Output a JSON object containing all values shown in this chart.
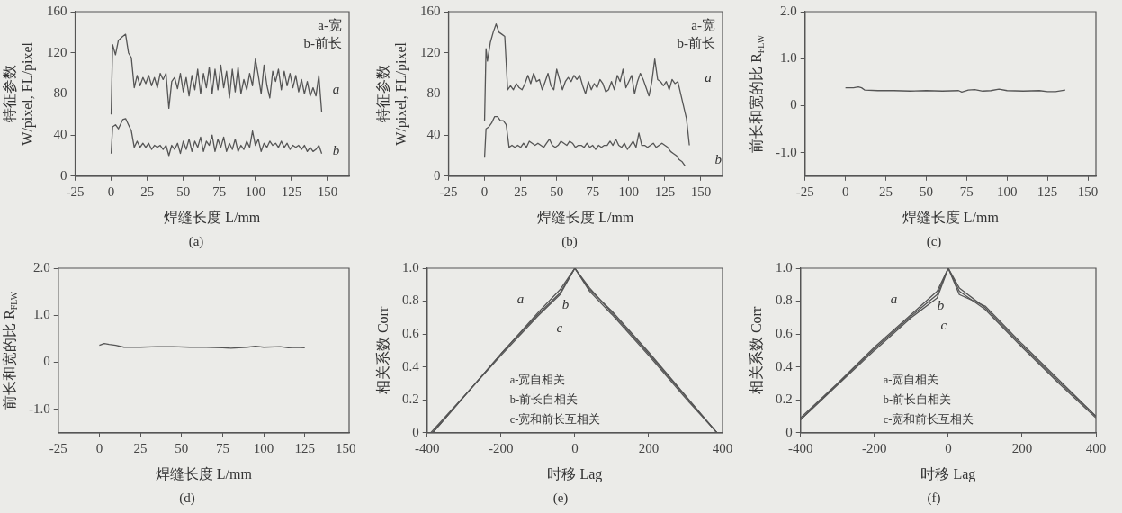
{
  "chart_data": [
    {
      "type": "line",
      "title": "(a)",
      "xlabel": "焊缝长度 L/mm",
      "ylabel": "特征参数\nW/pixel, FL/pixel",
      "xlim": [
        -25,
        165
      ],
      "xticks": [
        -25,
        0,
        25,
        50,
        75,
        100,
        125,
        150
      ],
      "ylim": [
        0,
        160
      ],
      "yticks": [
        0,
        40,
        80,
        120,
        160
      ],
      "series": [
        {
          "name": "a",
          "color": "#555555",
          "x": [
            0,
            1,
            3,
            5,
            8,
            10,
            12,
            14,
            16,
            18,
            20,
            22,
            24,
            26,
            28,
            30,
            32,
            34,
            36,
            38,
            40,
            42,
            44,
            46,
            48,
            50,
            52,
            54,
            56,
            58,
            60,
            62,
            64,
            66,
            68,
            70,
            72,
            74,
            76,
            78,
            80,
            82,
            84,
            86,
            88,
            90,
            92,
            94,
            96,
            98,
            100,
            102,
            104,
            106,
            108,
            110,
            112,
            114,
            116,
            118,
            120,
            122,
            124,
            126,
            128,
            130,
            132,
            134,
            136,
            138,
            140,
            142,
            144,
            146
          ],
          "values": [
            60,
            128,
            118,
            132,
            136,
            138,
            120,
            115,
            86,
            98,
            88,
            96,
            90,
            98,
            88,
            96,
            86,
            100,
            94,
            100,
            66,
            92,
            96,
            85,
            100,
            82,
            96,
            78,
            98,
            84,
            104,
            80,
            100,
            86,
            106,
            80,
            104,
            84,
            108,
            86,
            102,
            76,
            104,
            82,
            106,
            80,
            94,
            84,
            100,
            88,
            114,
            98,
            80,
            108,
            88,
            76,
            102,
            92,
            104,
            84,
            102,
            88,
            100,
            86,
            98,
            82,
            94,
            80,
            92,
            78,
            86,
            78,
            98,
            62
          ]
        },
        {
          "name": "b",
          "color": "#555555",
          "x": [
            0,
            1,
            3,
            5,
            8,
            10,
            12,
            14,
            16,
            18,
            20,
            22,
            24,
            26,
            28,
            30,
            32,
            34,
            36,
            38,
            40,
            42,
            44,
            46,
            48,
            50,
            52,
            54,
            56,
            58,
            60,
            62,
            64,
            66,
            68,
            70,
            72,
            74,
            76,
            78,
            80,
            82,
            84,
            86,
            88,
            90,
            92,
            94,
            96,
            98,
            100,
            102,
            104,
            106,
            108,
            110,
            112,
            114,
            116,
            118,
            120,
            122,
            124,
            126,
            128,
            130,
            132,
            134,
            136,
            138,
            140,
            142,
            144,
            146
          ],
          "values": [
            22,
            48,
            50,
            46,
            55,
            56,
            50,
            44,
            28,
            34,
            28,
            32,
            28,
            32,
            26,
            30,
            28,
            30,
            26,
            30,
            20,
            30,
            26,
            32,
            22,
            34,
            26,
            36,
            24,
            34,
            28,
            38,
            24,
            34,
            30,
            40,
            24,
            36,
            28,
            38,
            24,
            32,
            26,
            36,
            24,
            30,
            26,
            34,
            28,
            44,
            30,
            36,
            24,
            32,
            28,
            34,
            30,
            32,
            28,
            34,
            28,
            32,
            26,
            30,
            28,
            30,
            26,
            30,
            24,
            28,
            24,
            26,
            30,
            22
          ]
        }
      ],
      "annotations": [
        "a-宽",
        "b-前长"
      ]
    },
    {
      "type": "line",
      "title": "(b)",
      "xlabel": "焊缝长度 L/mm",
      "ylabel": "特征参数\nW/pixel, FL/pixel",
      "xlim": [
        -25,
        165
      ],
      "xticks": [
        -25,
        0,
        25,
        50,
        75,
        100,
        125,
        150
      ],
      "ylim": [
        0,
        160
      ],
      "yticks": [
        0,
        40,
        80,
        120,
        160
      ],
      "series": [
        {
          "name": "a",
          "color": "#555555",
          "x": [
            0,
            1,
            2,
            4,
            6,
            8,
            10,
            12,
            14,
            16,
            18,
            20,
            22,
            24,
            26,
            28,
            30,
            32,
            34,
            36,
            38,
            40,
            42,
            44,
            46,
            48,
            50,
            52,
            54,
            56,
            58,
            60,
            62,
            64,
            66,
            68,
            70,
            72,
            74,
            76,
            78,
            80,
            82,
            84,
            86,
            88,
            90,
            92,
            94,
            96,
            98,
            100,
            102,
            104,
            106,
            108,
            110,
            112,
            114,
            116,
            118,
            120,
            122,
            124,
            126,
            128,
            130,
            132,
            134,
            136,
            138,
            140,
            142
          ],
          "values": [
            54,
            124,
            112,
            130,
            140,
            148,
            140,
            138,
            136,
            84,
            88,
            84,
            90,
            86,
            84,
            90,
            98,
            90,
            100,
            92,
            94,
            84,
            92,
            100,
            88,
            84,
            104,
            94,
            84,
            92,
            96,
            92,
            98,
            94,
            98,
            88,
            80,
            92,
            84,
            90,
            86,
            94,
            90,
            82,
            84,
            92,
            84,
            98,
            92,
            104,
            86,
            92,
            98,
            80,
            92,
            100,
            94,
            86,
            78,
            92,
            114,
            94,
            92,
            88,
            92,
            84,
            94,
            90,
            92,
            80,
            68,
            56,
            30
          ]
        },
        {
          "name": "b",
          "color": "#555555",
          "x": [
            0,
            1,
            3,
            5,
            7,
            9,
            11,
            13,
            15,
            17,
            19,
            21,
            23,
            25,
            27,
            29,
            31,
            33,
            35,
            37,
            39,
            41,
            43,
            45,
            47,
            49,
            51,
            53,
            55,
            57,
            59,
            61,
            63,
            65,
            67,
            69,
            71,
            73,
            75,
            77,
            79,
            81,
            83,
            85,
            87,
            89,
            91,
            93,
            95,
            97,
            99,
            101,
            103,
            105,
            107,
            109,
            111,
            113,
            115,
            117,
            119,
            121,
            123,
            125,
            127,
            129,
            131,
            133,
            135,
            137,
            139
          ],
          "values": [
            18,
            46,
            48,
            52,
            58,
            58,
            54,
            54,
            50,
            28,
            30,
            28,
            30,
            28,
            32,
            28,
            34,
            32,
            30,
            32,
            30,
            28,
            32,
            36,
            30,
            28,
            30,
            34,
            32,
            30,
            34,
            32,
            28,
            30,
            30,
            28,
            32,
            28,
            30,
            26,
            30,
            28,
            30,
            30,
            34,
            30,
            36,
            30,
            28,
            32,
            26,
            30,
            34,
            28,
            42,
            30,
            30,
            28,
            30,
            32,
            28,
            30,
            32,
            30,
            28,
            24,
            22,
            20,
            16,
            14,
            10
          ]
        }
      ],
      "annotations": [
        "a-宽",
        "b-前长"
      ]
    },
    {
      "type": "line",
      "title": "(c)",
      "xlabel": "焊缝长度 L/mm",
      "ylabel": "前长和宽的比 R$_{FLW}$",
      "xlim": [
        -25,
        155
      ],
      "xticks": [
        -25,
        0,
        25,
        50,
        75,
        100,
        125,
        150
      ],
      "ylim": [
        -1.5,
        2.0
      ],
      "yticks": [
        {
          "value": -1,
          "label": "-1.0"
        },
        0,
        {
          "value": 1,
          "label": "1.0"
        },
        {
          "value": 2,
          "label": "2.0"
        }
      ],
      "series": [
        {
          "color": "#555555",
          "x": [
            0,
            5,
            8,
            10,
            12,
            20,
            30,
            40,
            50,
            60,
            70,
            72,
            76,
            80,
            85,
            90,
            95,
            100,
            110,
            120,
            125,
            130,
            136
          ],
          "values": [
            0.38,
            0.38,
            0.4,
            0.38,
            0.33,
            0.32,
            0.32,
            0.31,
            0.32,
            0.31,
            0.32,
            0.29,
            0.33,
            0.34,
            0.31,
            0.32,
            0.35,
            0.32,
            0.31,
            0.32,
            0.3,
            0.3,
            0.33
          ]
        }
      ]
    },
    {
      "type": "line",
      "title": "(d)",
      "xlabel": "焊缝长度 L/mm",
      "ylabel": "前长和宽的比 R$_{FLW}$",
      "xlim": [
        -25,
        152
      ],
      "xticks": [
        -25,
        0,
        25,
        50,
        75,
        100,
        125,
        150
      ],
      "ylim": [
        -1.5,
        2.0
      ],
      "yticks": [
        {
          "value": -1,
          "label": "-1.0"
        },
        0,
        {
          "value": 1,
          "label": "1.0"
        },
        {
          "value": 2,
          "label": "2.0"
        }
      ],
      "series": [
        {
          "color": "#555555",
          "x": [
            0,
            3,
            6,
            10,
            15,
            25,
            35,
            45,
            55,
            65,
            75,
            80,
            90,
            95,
            100,
            110,
            115,
            120,
            125
          ],
          "values": [
            0.36,
            0.4,
            0.38,
            0.36,
            0.32,
            0.32,
            0.33,
            0.33,
            0.32,
            0.32,
            0.31,
            0.3,
            0.32,
            0.34,
            0.32,
            0.33,
            0.31,
            0.32,
            0.31
          ]
        }
      ]
    },
    {
      "type": "line",
      "title": "(e)",
      "xlabel": "时移 Lag",
      "ylabel": "相关系数 Corr",
      "xlim": [
        -400,
        400
      ],
      "xticks": [
        -400,
        -200,
        0,
        200,
        400
      ],
      "ylim": [
        0,
        1.0
      ],
      "yticks": [
        0,
        0.2,
        0.4,
        0.6,
        0.8,
        {
          "value": 1,
          "label": "1.0"
        }
      ],
      "series": [
        {
          "name": "a",
          "color": "#555555",
          "x": [
            -385,
            -300,
            -200,
            -100,
            -40,
            0,
            40,
            100,
            200,
            300,
            385
          ],
          "values": [
            0,
            0.22,
            0.48,
            0.73,
            0.87,
            1,
            0.88,
            0.73,
            0.48,
            0.22,
            0
          ]
        },
        {
          "name": "b",
          "color": "#555555",
          "x": [
            -385,
            -200,
            -100,
            -40,
            0,
            40,
            100,
            200,
            300,
            385
          ],
          "values": [
            0,
            0.48,
            0.72,
            0.85,
            1,
            0.86,
            0.72,
            0.47,
            0.21,
            0
          ]
        },
        {
          "name": "c",
          "color": "#555555",
          "x": [
            -390,
            -200,
            -100,
            -40,
            0,
            40,
            100,
            200,
            385
          ],
          "values": [
            0,
            0.47,
            0.71,
            0.84,
            1,
            0.87,
            0.74,
            0.49,
            0
          ]
        }
      ],
      "annotations": [
        "a-宽自相关",
        "b-前长自相关",
        "c-宽和前长互相关"
      ]
    },
    {
      "type": "line",
      "title": "(f)",
      "xlabel": "时移 Lag",
      "ylabel": "相关系数 Corr",
      "xlim": [
        -400,
        400
      ],
      "xticks": [
        -400,
        -200,
        0,
        200,
        400
      ],
      "ylim": [
        0,
        1.0
      ],
      "yticks": [
        0,
        0.2,
        0.4,
        0.6,
        0.8,
        {
          "value": 1,
          "label": "1.0"
        }
      ],
      "series": [
        {
          "name": "a",
          "color": "#555555",
          "x": [
            -400,
            -300,
            -200,
            -100,
            -30,
            0,
            30,
            100,
            200,
            300,
            400
          ],
          "values": [
            0.09,
            0.3,
            0.52,
            0.72,
            0.86,
            1,
            0.88,
            0.76,
            0.53,
            0.31,
            0.1
          ]
        },
        {
          "name": "b",
          "color": "#555555",
          "x": [
            -400,
            -200,
            -100,
            -30,
            0,
            30,
            100,
            200,
            300,
            400
          ],
          "values": [
            0.08,
            0.51,
            0.71,
            0.84,
            1,
            0.86,
            0.75,
            0.52,
            0.3,
            0.09
          ]
        },
        {
          "name": "c",
          "color": "#555555",
          "x": [
            -400,
            -200,
            -100,
            -30,
            0,
            30,
            100,
            200,
            400
          ],
          "values": [
            0.08,
            0.5,
            0.7,
            0.82,
            1,
            0.84,
            0.77,
            0.54,
            0.1
          ]
        }
      ],
      "annotations": [
        "a-宽自相关",
        "b-前长自相关",
        "c-宽和前长互相关"
      ]
    }
  ]
}
